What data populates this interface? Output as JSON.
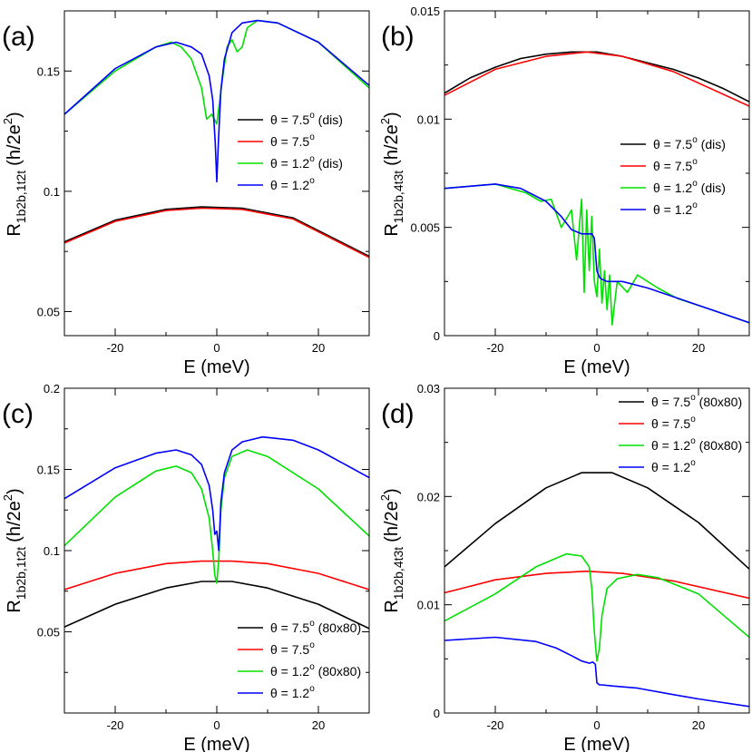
{
  "chart_data": [
    {
      "type": "line",
      "panel_label": "(a)",
      "xlabel": "E (meV)",
      "ylabel_main": "R",
      "ylabel_sub": "1b2b,1t2t",
      "ylabel_unit": "(h/2e",
      "ylabel_unit_sup": "2",
      "ylabel_unit_close": ")",
      "xlim": [
        -30,
        30
      ],
      "ylim": [
        0.04,
        0.175
      ],
      "xticks": [
        -20,
        0,
        20
      ],
      "xtick_labels": [
        "-20",
        "0",
        "20"
      ],
      "yticks": [
        0.05,
        0.1,
        0.15
      ],
      "ytick_labels": [
        "0.05",
        "0.1",
        "0.15"
      ],
      "legend_position": "right",
      "series": [
        {
          "name": "θ = 7.5",
          "name_sup": "o",
          "name_suffix": " (dis)",
          "color": "#000000",
          "x": [
            -30,
            -20,
            -10,
            -3,
            5,
            15,
            30
          ],
          "y": [
            0.079,
            0.088,
            0.0925,
            0.0935,
            0.093,
            0.089,
            0.073
          ]
        },
        {
          "name": "θ = 7.5",
          "name_sup": "o",
          "name_suffix": "",
          "color": "#ff0000",
          "x": [
            -30,
            -20,
            -10,
            -3,
            5,
            15,
            30
          ],
          "y": [
            0.0785,
            0.0875,
            0.092,
            0.093,
            0.0925,
            0.0885,
            0.0725
          ]
        },
        {
          "name": "θ = 1.2",
          "name_sup": "o",
          "name_suffix": " (dis)",
          "color": "#00e000",
          "x": [
            -30,
            -20,
            -12,
            -9,
            -7,
            -5,
            -3,
            -2,
            -1,
            0,
            1,
            2,
            3,
            4,
            5,
            6,
            8,
            12,
            20,
            30
          ],
          "y": [
            0.132,
            0.15,
            0.16,
            0.162,
            0.16,
            0.155,
            0.143,
            0.13,
            0.132,
            0.128,
            0.145,
            0.16,
            0.163,
            0.158,
            0.16,
            0.168,
            0.171,
            0.17,
            0.162,
            0.143
          ]
        },
        {
          "name": "θ = 1.2",
          "name_sup": "o",
          "name_suffix": "",
          "color": "#0000ff",
          "x": [
            -30,
            -20,
            -12,
            -8,
            -5,
            -3,
            -1.5,
            -0.8,
            -0.3,
            0,
            0.3,
            0.8,
            1.5,
            3,
            5,
            8,
            12,
            20,
            30
          ],
          "y": [
            0.132,
            0.151,
            0.16,
            0.162,
            0.16,
            0.157,
            0.148,
            0.138,
            0.12,
            0.104,
            0.12,
            0.142,
            0.155,
            0.166,
            0.17,
            0.171,
            0.17,
            0.162,
            0.144
          ]
        }
      ]
    },
    {
      "type": "line",
      "panel_label": "(b)",
      "xlabel": "E (meV)",
      "ylabel_main": "R",
      "ylabel_sub": "1b2b,4t3t",
      "ylabel_unit": "(h/2e",
      "ylabel_unit_sup": "2",
      "ylabel_unit_close": ")",
      "xlim": [
        -30,
        30
      ],
      "ylim": [
        0,
        0.015
      ],
      "xticks": [
        -20,
        0,
        20
      ],
      "xtick_labels": [
        "-20",
        "0",
        "20"
      ],
      "yticks": [
        0,
        0.005,
        0.01,
        0.015
      ],
      "ytick_labels": [
        "0",
        "0.005",
        "0.01",
        "0.015"
      ],
      "legend_position": "right",
      "series": [
        {
          "name": "θ = 7.5",
          "name_sup": "o",
          "name_suffix": " (dis)",
          "color": "#000000",
          "x": [
            -30,
            -25,
            -20,
            -15,
            -10,
            -5,
            0,
            5,
            10,
            15,
            20,
            25,
            30
          ],
          "y": [
            0.0112,
            0.0119,
            0.0124,
            0.0128,
            0.013,
            0.0131,
            0.0131,
            0.0129,
            0.0126,
            0.0123,
            0.0119,
            0.0114,
            0.0108
          ]
        },
        {
          "name": "θ = 7.5",
          "name_sup": "o",
          "name_suffix": "",
          "color": "#ff0000",
          "x": [
            -30,
            -20,
            -10,
            -2,
            5,
            15,
            30
          ],
          "y": [
            0.0111,
            0.0123,
            0.0129,
            0.0131,
            0.0129,
            0.0122,
            0.0106
          ]
        },
        {
          "name": "θ = 1.2",
          "name_sup": "o",
          "name_suffix": " (dis)",
          "color": "#00e000",
          "x": [
            -30,
            -25,
            -20,
            -17,
            -14,
            -11,
            -9,
            -7,
            -5,
            -4,
            -3,
            -2.5,
            -2,
            -1.5,
            -1,
            -0.5,
            0,
            0.5,
            1,
            1.5,
            2,
            2.5,
            3,
            4,
            6,
            8,
            12,
            16,
            20,
            25,
            30
          ],
          "y": [
            0.0068,
            0.0069,
            0.007,
            0.0068,
            0.0066,
            0.0062,
            0.0063,
            0.005,
            0.0058,
            0.0035,
            0.0063,
            0.002,
            0.0058,
            0.003,
            0.0055,
            0.0025,
            0.0018,
            0.004,
            0.0015,
            0.003,
            0.0012,
            0.0028,
            0.0005,
            0.0025,
            0.002,
            0.0028,
            0.0022,
            0.0017,
            0.0014,
            0.001,
            0.0006
          ]
        },
        {
          "name": "θ = 1.2",
          "name_sup": "o",
          "name_suffix": "",
          "color": "#0000ff",
          "x": [
            -30,
            -25,
            -20,
            -15,
            -10,
            -7,
            -5,
            -3,
            -1,
            -0.5,
            0,
            0.5,
            1,
            2,
            5,
            10,
            15,
            20,
            25,
            30
          ],
          "y": [
            0.0068,
            0.0069,
            0.007,
            0.0068,
            0.0062,
            0.0055,
            0.0049,
            0.0047,
            0.0047,
            0.0045,
            0.003,
            0.0027,
            0.0026,
            0.0025,
            0.0025,
            0.0022,
            0.0018,
            0.0014,
            0.001,
            0.0006
          ]
        }
      ]
    },
    {
      "type": "line",
      "panel_label": "(c)",
      "xlabel": "E (meV)",
      "ylabel_main": "R",
      "ylabel_sub": "1b2b,1t2t",
      "ylabel_unit": "(h/2e",
      "ylabel_unit_sup": "2",
      "ylabel_unit_close": ")",
      "xlim": [
        -30,
        30
      ],
      "ylim": [
        0,
        0.2
      ],
      "xticks": [
        -20,
        0,
        20
      ],
      "xtick_labels": [
        "-20",
        "0",
        "20"
      ],
      "yticks": [
        0.05,
        0.1,
        0.15,
        0.2
      ],
      "ytick_labels": [
        "0.05",
        "0.1",
        "0.15",
        "0.2"
      ],
      "legend_position": "bottom-right",
      "series": [
        {
          "name": "θ = 7.5",
          "name_sup": "o",
          "name_suffix": " (80x80)",
          "color": "#000000",
          "x": [
            -30,
            -20,
            -10,
            -3,
            3,
            10,
            20,
            30
          ],
          "y": [
            0.053,
            0.067,
            0.077,
            0.081,
            0.081,
            0.077,
            0.067,
            0.052
          ]
        },
        {
          "name": "θ = 7.5",
          "name_sup": "o",
          "name_suffix": "",
          "color": "#ff0000",
          "x": [
            -30,
            -20,
            -10,
            -3,
            3,
            10,
            20,
            30
          ],
          "y": [
            0.076,
            0.086,
            0.092,
            0.0935,
            0.0935,
            0.092,
            0.086,
            0.076
          ]
        },
        {
          "name": "θ = 1.2",
          "name_sup": "o",
          "name_suffix": " (80x80)",
          "color": "#00e000",
          "x": [
            -30,
            -20,
            -12,
            -8,
            -5,
            -3,
            -1.5,
            -0.8,
            -0.4,
            0,
            0.4,
            0.8,
            1.5,
            3,
            6,
            10,
            20,
            30
          ],
          "y": [
            0.103,
            0.133,
            0.149,
            0.152,
            0.148,
            0.138,
            0.12,
            0.1,
            0.085,
            0.08,
            0.095,
            0.125,
            0.145,
            0.158,
            0.162,
            0.158,
            0.138,
            0.109
          ]
        },
        {
          "name": "θ = 1.2",
          "name_sup": "o",
          "name_suffix": "",
          "color": "#0000ff",
          "x": [
            -30,
            -20,
            -12,
            -8,
            -5,
            -3,
            -1.5,
            -0.8,
            -0.4,
            0,
            0.4,
            0.8,
            1.5,
            3,
            5,
            9,
            15,
            20,
            30
          ],
          "y": [
            0.132,
            0.151,
            0.16,
            0.162,
            0.159,
            0.153,
            0.14,
            0.125,
            0.11,
            0.112,
            0.1,
            0.13,
            0.148,
            0.162,
            0.167,
            0.17,
            0.168,
            0.162,
            0.145
          ]
        }
      ]
    },
    {
      "type": "line",
      "panel_label": "(d)",
      "xlabel": "E (meV)",
      "ylabel_main": "R",
      "ylabel_sub": "1b2b,4t3t",
      "ylabel_unit": "(h/2e",
      "ylabel_unit_sup": "2",
      "ylabel_unit_close": ")",
      "xlim": [
        -30,
        30
      ],
      "ylim": [
        0,
        0.03
      ],
      "xticks": [
        -20,
        0,
        20
      ],
      "xtick_labels": [
        "-20",
        "0",
        "20"
      ],
      "yticks": [
        0,
        0.01,
        0.02,
        0.03
      ],
      "ytick_labels": [
        "0",
        "0.01",
        "0.02",
        "0.03"
      ],
      "legend_position": "top-right",
      "series": [
        {
          "name": "θ = 7.5",
          "name_sup": "o",
          "name_suffix": " (80x80)",
          "color": "#000000",
          "x": [
            -30,
            -20,
            -10,
            -3,
            3,
            10,
            20,
            30
          ],
          "y": [
            0.0135,
            0.0175,
            0.0208,
            0.0222,
            0.0222,
            0.0208,
            0.0176,
            0.0133
          ]
        },
        {
          "name": "θ = 7.5",
          "name_sup": "o",
          "name_suffix": "",
          "color": "#ff0000",
          "x": [
            -30,
            -20,
            -10,
            -2,
            5,
            15,
            30
          ],
          "y": [
            0.0111,
            0.0123,
            0.0129,
            0.0131,
            0.0129,
            0.0122,
            0.0106
          ]
        },
        {
          "name": "θ = 1.2",
          "name_sup": "o",
          "name_suffix": " (80x80)",
          "color": "#00e000",
          "x": [
            -30,
            -20,
            -12,
            -6,
            -3,
            -1.5,
            -1,
            -0.5,
            0,
            0.5,
            1,
            2,
            4,
            8,
            12,
            20,
            30
          ],
          "y": [
            0.0085,
            0.011,
            0.0135,
            0.0147,
            0.0145,
            0.0135,
            0.0115,
            0.0075,
            0.0048,
            0.006,
            0.009,
            0.0115,
            0.0124,
            0.0128,
            0.0125,
            0.011,
            0.007
          ]
        },
        {
          "name": "θ = 1.2",
          "name_sup": "o",
          "name_suffix": "",
          "color": "#0000ff",
          "x": [
            -30,
            -20,
            -12,
            -8,
            -5,
            -3,
            -1.5,
            -0.8,
            -0.3,
            0,
            0.5,
            1,
            3,
            8,
            15,
            20,
            30
          ],
          "y": [
            0.0067,
            0.007,
            0.0066,
            0.006,
            0.0053,
            0.0048,
            0.0046,
            0.0047,
            0.0045,
            0.0028,
            0.0026,
            0.0026,
            0.0025,
            0.0023,
            0.0017,
            0.0013,
            0.0006
          ]
        }
      ]
    }
  ]
}
